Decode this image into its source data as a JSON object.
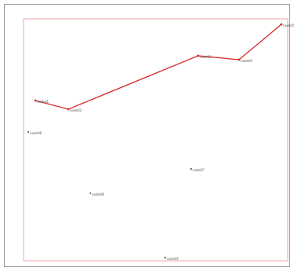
{
  "colors": {
    "route": "#d62828",
    "plot_border": "#f2a5a5",
    "frame_border": "#9a9a9a",
    "marker": "#444444",
    "label": "#555555"
  },
  "route": {
    "stops": [
      {
        "label": "node01",
        "icon": "route-stop-marker"
      },
      {
        "label": "node02",
        "icon": "route-stop-marker"
      },
      {
        "label": "node03",
        "icon": "route-stop-marker"
      },
      {
        "label": "node04",
        "icon": "route-stop-marker"
      },
      {
        "label": "node05",
        "icon": "route-stop-marker"
      }
    ]
  },
  "points": [
    {
      "label": "node06",
      "icon": "point-marker"
    },
    {
      "label": "node07",
      "icon": "point-marker"
    },
    {
      "label": "node08",
      "icon": "point-marker"
    },
    {
      "label": "node09",
      "icon": "point-marker"
    }
  ]
}
